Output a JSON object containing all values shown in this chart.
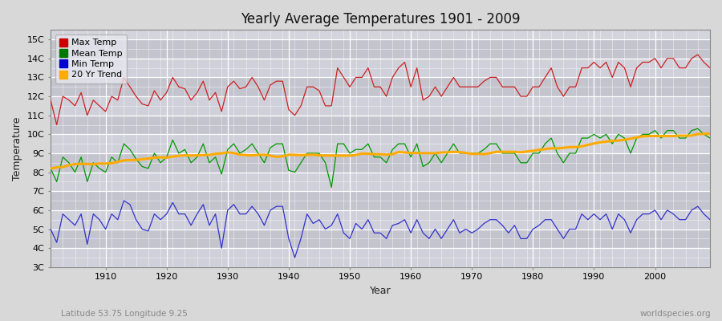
{
  "title": "Yearly Average Temperatures 1901 - 2009",
  "xlabel": "Year",
  "ylabel": "Temperature",
  "footer_left": "Latitude 53.75 Longitude 9.25",
  "footer_right": "worldspecies.org",
  "legend_labels": [
    "Max Temp",
    "Mean Temp",
    "Min Temp",
    "20 Yr Trend"
  ],
  "legend_colors": [
    "#cc0000",
    "#007700",
    "#0000cc",
    "#ffaa00"
  ],
  "line_colors": [
    "#cc2222",
    "#009900",
    "#3333cc",
    "#ffaa00"
  ],
  "yticks": [
    "3C",
    "4C",
    "5C",
    "6C",
    "7C",
    "8C",
    "9C",
    "10C",
    "11C",
    "12C",
    "13C",
    "14C",
    "15C"
  ],
  "yvalues": [
    3,
    4,
    5,
    6,
    7,
    8,
    9,
    10,
    11,
    12,
    13,
    14,
    15
  ],
  "ylim": [
    3,
    15.5
  ],
  "xlim": [
    1901,
    2009
  ],
  "xticks": [
    1910,
    1920,
    1930,
    1940,
    1950,
    1960,
    1970,
    1980,
    1990,
    2000
  ],
  "bg_color": "#d8d8d8",
  "plot_bg_light": "#e0e0e8",
  "plot_bg_dark": "#c8c8d0",
  "grid_color": "#ffffff",
  "years": [
    1901,
    1902,
    1903,
    1904,
    1905,
    1906,
    1907,
    1908,
    1909,
    1910,
    1911,
    1912,
    1913,
    1914,
    1915,
    1916,
    1917,
    1918,
    1919,
    1920,
    1921,
    1922,
    1923,
    1924,
    1925,
    1926,
    1927,
    1928,
    1929,
    1930,
    1931,
    1932,
    1933,
    1934,
    1935,
    1936,
    1937,
    1938,
    1939,
    1940,
    1941,
    1942,
    1943,
    1944,
    1945,
    1946,
    1947,
    1948,
    1949,
    1950,
    1951,
    1952,
    1953,
    1954,
    1955,
    1956,
    1957,
    1958,
    1959,
    1960,
    1961,
    1962,
    1963,
    1964,
    1965,
    1966,
    1967,
    1968,
    1969,
    1970,
    1971,
    1972,
    1973,
    1974,
    1975,
    1976,
    1977,
    1978,
    1979,
    1980,
    1981,
    1982,
    1983,
    1984,
    1985,
    1986,
    1987,
    1988,
    1989,
    1990,
    1991,
    1992,
    1993,
    1994,
    1995,
    1996,
    1997,
    1998,
    1999,
    2000,
    2001,
    2002,
    2003,
    2004,
    2005,
    2006,
    2007,
    2008,
    2009
  ],
  "max_temp": [
    11.8,
    10.5,
    12.0,
    11.8,
    11.5,
    12.2,
    11.0,
    11.8,
    11.5,
    11.2,
    12.0,
    11.8,
    13.0,
    12.5,
    12.0,
    11.6,
    11.5,
    12.3,
    11.8,
    12.2,
    13.0,
    12.5,
    12.4,
    11.8,
    12.2,
    12.8,
    11.8,
    12.2,
    11.2,
    12.5,
    12.8,
    12.4,
    12.5,
    13.0,
    12.5,
    11.8,
    12.6,
    12.8,
    12.8,
    11.3,
    11.0,
    11.5,
    12.5,
    12.5,
    12.3,
    11.5,
    11.5,
    13.5,
    13.0,
    12.5,
    13.0,
    13.0,
    13.5,
    12.5,
    12.5,
    12.0,
    13.0,
    13.5,
    13.8,
    12.5,
    13.5,
    11.8,
    12.0,
    12.5,
    12.0,
    12.5,
    13.0,
    12.5,
    12.5,
    12.5,
    12.5,
    12.8,
    13.0,
    13.0,
    12.5,
    12.5,
    12.5,
    12.0,
    12.0,
    12.5,
    12.5,
    13.0,
    13.5,
    12.5,
    12.0,
    12.5,
    12.5,
    13.5,
    13.5,
    13.8,
    13.5,
    13.8,
    13.0,
    13.8,
    13.5,
    12.5,
    13.5,
    13.8,
    13.8,
    14.0,
    13.5,
    14.0,
    14.0,
    13.5,
    13.5,
    14.0,
    14.2,
    13.8,
    13.5
  ],
  "mean_temp": [
    8.2,
    7.5,
    8.8,
    8.5,
    8.0,
    8.8,
    7.5,
    8.5,
    8.2,
    8.0,
    8.8,
    8.5,
    9.5,
    9.2,
    8.7,
    8.3,
    8.2,
    9.0,
    8.5,
    8.8,
    9.7,
    9.0,
    9.2,
    8.5,
    8.8,
    9.5,
    8.5,
    8.8,
    7.9,
    9.2,
    9.5,
    9.0,
    9.2,
    9.5,
    9.0,
    8.5,
    9.3,
    9.5,
    9.5,
    8.1,
    8.0,
    8.5,
    9.0,
    9.0,
    9.0,
    8.5,
    7.2,
    9.5,
    9.5,
    9.0,
    9.2,
    9.2,
    9.5,
    8.8,
    8.8,
    8.5,
    9.2,
    9.5,
    9.5,
    8.8,
    9.5,
    8.3,
    8.5,
    9.0,
    8.5,
    9.0,
    9.5,
    9.0,
    9.0,
    9.0,
    9.0,
    9.2,
    9.5,
    9.5,
    9.0,
    9.0,
    9.0,
    8.5,
    8.5,
    9.0,
    9.0,
    9.5,
    9.8,
    9.0,
    8.5,
    9.0,
    9.0,
    9.8,
    9.8,
    10.0,
    9.8,
    10.0,
    9.5,
    10.0,
    9.8,
    9.0,
    9.8,
    10.0,
    10.0,
    10.2,
    9.8,
    10.2,
    10.2,
    9.8,
    9.8,
    10.2,
    10.3,
    10.0,
    9.8
  ],
  "min_temp": [
    5.0,
    4.3,
    5.8,
    5.5,
    5.2,
    5.8,
    4.2,
    5.8,
    5.5,
    5.0,
    5.8,
    5.5,
    6.5,
    6.3,
    5.5,
    5.0,
    4.9,
    5.8,
    5.5,
    5.8,
    6.4,
    5.8,
    5.8,
    5.2,
    5.8,
    6.3,
    5.2,
    5.8,
    4.0,
    6.0,
    6.3,
    5.8,
    5.8,
    6.2,
    5.8,
    5.2,
    6.0,
    6.2,
    6.2,
    4.5,
    3.5,
    4.5,
    5.8,
    5.3,
    5.5,
    5.0,
    5.2,
    5.8,
    4.8,
    4.5,
    5.3,
    5.0,
    5.5,
    4.8,
    4.8,
    4.5,
    5.2,
    5.3,
    5.5,
    4.8,
    5.5,
    4.8,
    4.5,
    5.0,
    4.5,
    5.0,
    5.5,
    4.8,
    5.0,
    4.8,
    5.0,
    5.3,
    5.5,
    5.5,
    5.2,
    4.8,
    5.2,
    4.5,
    4.5,
    5.0,
    5.2,
    5.5,
    5.5,
    5.0,
    4.5,
    5.0,
    5.0,
    5.8,
    5.5,
    5.8,
    5.5,
    5.8,
    5.0,
    5.8,
    5.5,
    4.8,
    5.5,
    5.8,
    5.8,
    6.0,
    5.5,
    6.0,
    5.8,
    5.5,
    5.5,
    6.0,
    6.2,
    5.8,
    5.5
  ]
}
